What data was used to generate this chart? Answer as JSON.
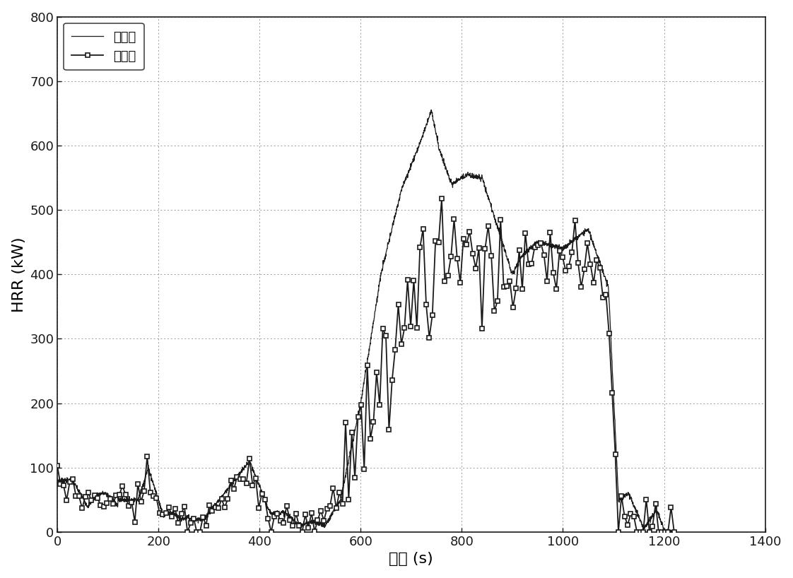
{
  "title": "",
  "xlabel": "时间 (s)",
  "ylabel": "HRR (kW)",
  "xlim": [
    0,
    1400
  ],
  "ylim": [
    0,
    800
  ],
  "xticks": [
    0,
    200,
    400,
    600,
    800,
    1000,
    1200,
    1400
  ],
  "yticks": [
    0,
    100,
    200,
    300,
    400,
    500,
    600,
    700,
    800
  ],
  "legend_calculated": "计算值",
  "legend_experimental": "实验值",
  "grid_color": "#999999",
  "background_color": "#ffffff",
  "font_size_label": 16,
  "font_size_tick": 13,
  "font_size_legend": 13
}
